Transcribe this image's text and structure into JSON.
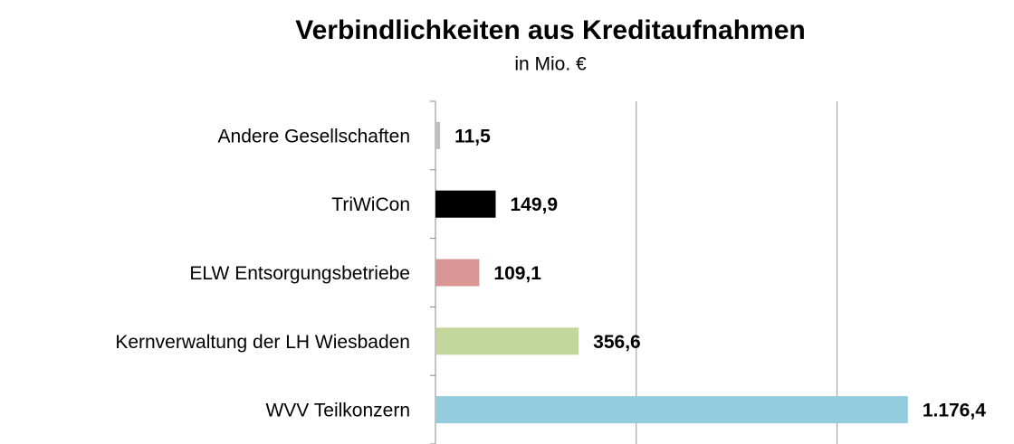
{
  "chart_data": {
    "type": "hbar",
    "title": "Verbindlichkeiten aus Kreditaufnahmen",
    "subtitle": "in Mio. €",
    "categories": [
      "Andere Gesellschaften",
      "TriWiCon",
      "ELW Entsorgungsbetriebe",
      "Kernverwaltung der LH Wiesbaden",
      "WVV Teilkonzern"
    ],
    "values": [
      11.5,
      149.9,
      109.1,
      356.6,
      1176.4
    ],
    "value_labels": [
      "11,5",
      "149,9",
      "109,1",
      "356,6",
      "1.176,4"
    ],
    "colors": [
      "#bfbfbf",
      "#000000",
      "#d99694",
      "#c3d69b",
      "#93cddd"
    ],
    "xlim": [
      0,
      1400
    ],
    "xticks": [
      0,
      500,
      1000
    ],
    "grid": true
  }
}
